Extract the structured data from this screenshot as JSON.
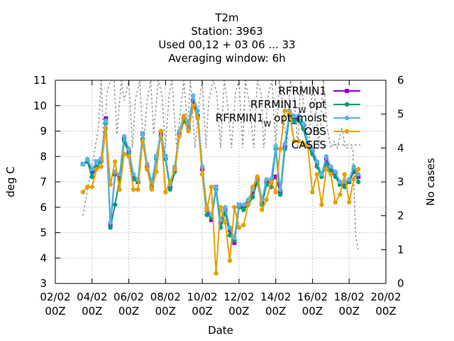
{
  "chart_data": {
    "type": "line",
    "title_lines": [
      "T2m",
      "Station:      3963",
      "Used  00,12  + 03 06 ... 33",
      "Averaging window:  6h"
    ],
    "xlabel": "Date",
    "ylabel": "deg C",
    "y2label": "No cases",
    "xlim": [
      0,
      18
    ],
    "ylim": [
      3,
      11
    ],
    "y2lim": [
      0,
      6
    ],
    "x_ticks": [
      {
        "x": 0,
        "date": "02/02",
        "hour": "00Z"
      },
      {
        "x": 2,
        "date": "04/02",
        "hour": "00Z"
      },
      {
        "x": 4,
        "date": "06/02",
        "hour": "00Z"
      },
      {
        "x": 6,
        "date": "08/02",
        "hour": "00Z"
      },
      {
        "x": 8,
        "date": "10/02",
        "hour": "00Z"
      },
      {
        "x": 10,
        "date": "12/02",
        "hour": "00Z"
      },
      {
        "x": 12,
        "date": "14/02",
        "hour": "00Z"
      },
      {
        "x": 14,
        "date": "16/02",
        "hour": "00Z"
      },
      {
        "x": 16,
        "date": "18/02",
        "hour": "00Z"
      },
      {
        "x": 18,
        "date": "20/02",
        "hour": "00Z"
      }
    ],
    "y_ticks": [
      3,
      4,
      5,
      6,
      7,
      8,
      9,
      10,
      11
    ],
    "y2_ticks": [
      0,
      1,
      2,
      3,
      4,
      5,
      6
    ],
    "grid": true,
    "legend_position": "top-right",
    "legend": [
      {
        "key": "rfrmin1",
        "main": "RFRMIN1",
        "sub": "",
        "tail": ""
      },
      {
        "key": "rfrmin1_opt",
        "main": "RFRMIN1",
        "sub": "W",
        "tail": "opt"
      },
      {
        "key": "rfrmin1_optmoist",
        "main": "RFRMIN1",
        "sub": "W",
        "tail": "opt_moist"
      },
      {
        "key": "obs",
        "main": "OBS",
        "sub": "",
        "tail": ""
      },
      {
        "key": "cases",
        "main": "CASES",
        "sub": "",
        "tail": ""
      }
    ],
    "colors": {
      "rfrmin1": "#9400d3",
      "rfrmin1_opt": "#009e73",
      "rfrmin1_optmoist": "#56b4e9",
      "obs": "#e69f00",
      "cases": "#999999"
    },
    "x": [
      1.5,
      1.75,
      2.0,
      2.25,
      2.5,
      2.75,
      3.0,
      3.25,
      3.5,
      3.75,
      4.0,
      4.25,
      4.5,
      4.75,
      5.0,
      5.25,
      5.5,
      5.75,
      6.0,
      6.25,
      6.5,
      6.75,
      7.0,
      7.25,
      7.5,
      7.75,
      8.0,
      8.25,
      8.5,
      8.75,
      9.0,
      9.25,
      9.5,
      9.75,
      10.0,
      10.25,
      10.5,
      10.75,
      11.0,
      11.25,
      11.5,
      11.75,
      12.0,
      12.25,
      12.5,
      12.75,
      13.0,
      13.25,
      13.5,
      13.75,
      14.0,
      14.25,
      14.5,
      14.75,
      15.0,
      15.25,
      15.5,
      15.75,
      16.0,
      16.25,
      16.5
    ],
    "series": [
      {
        "key": "rfrmin1",
        "values": [
          7.7,
          7.8,
          7.4,
          7.8,
          7.9,
          9.5,
          5.3,
          7.3,
          7.2,
          8.7,
          8.2,
          7.2,
          7.0,
          8.9,
          7.6,
          6.9,
          8.0,
          8.9,
          8.0,
          6.8,
          7.5,
          8.9,
          9.5,
          9.2,
          10.2,
          9.6,
          7.5,
          5.9,
          5.5,
          6.8,
          5.4,
          5.9,
          5.1,
          4.6,
          6.1,
          6.0,
          6.2,
          6.6,
          7.1,
          6.2,
          7.0,
          7.0,
          7.2,
          6.6,
          8.4,
          9.7,
          9.5,
          9.5,
          9.2,
          8.5,
          8.2,
          7.7,
          7.3,
          7.9,
          7.5,
          7.3,
          6.9,
          6.9,
          7.0,
          7.4,
          7.2
        ]
      },
      {
        "key": "rfrmin1_opt",
        "values": [
          7.7,
          7.8,
          7.2,
          7.6,
          7.8,
          9.3,
          5.2,
          6.1,
          7.1,
          8.6,
          8.1,
          7.1,
          7.0,
          8.7,
          7.5,
          6.8,
          7.9,
          8.8,
          7.9,
          6.7,
          7.4,
          8.8,
          9.4,
          9.1,
          10.0,
          9.6,
          7.3,
          5.7,
          5.6,
          6.7,
          5.2,
          5.8,
          4.9,
          4.7,
          6.0,
          5.9,
          6.1,
          6.4,
          7.0,
          6.1,
          6.9,
          6.8,
          8.3,
          6.5,
          8.3,
          9.6,
          9.4,
          9.4,
          9.1,
          8.4,
          8.1,
          7.6,
          7.2,
          7.7,
          7.4,
          7.2,
          6.9,
          6.8,
          7.0,
          7.5,
          7.0
        ]
      },
      {
        "key": "rfrmin1_optmoist",
        "values": [
          7.7,
          7.9,
          7.5,
          7.8,
          7.9,
          9.4,
          5.4,
          7.4,
          7.3,
          8.8,
          8.3,
          7.3,
          7.1,
          8.9,
          7.7,
          7.0,
          8.0,
          9.0,
          8.0,
          6.9,
          7.6,
          9.0,
          9.6,
          9.3,
          10.4,
          9.8,
          7.6,
          6.0,
          5.7,
          6.8,
          5.5,
          6.0,
          5.2,
          4.8,
          6.1,
          6.1,
          6.3,
          6.7,
          7.2,
          6.3,
          7.1,
          7.1,
          8.4,
          6.7,
          8.5,
          9.8,
          9.6,
          9.6,
          9.3,
          8.5,
          8.3,
          7.8,
          7.3,
          8.0,
          7.6,
          7.4,
          7.0,
          7.0,
          7.1,
          7.6,
          7.3
        ]
      },
      {
        "key": "obs",
        "values": [
          6.6,
          6.8,
          6.8,
          7.5,
          7.6,
          9.1,
          6.9,
          7.8,
          6.7,
          8.1,
          8.0,
          6.7,
          6.7,
          8.6,
          7.5,
          6.7,
          7.4,
          9.0,
          6.6,
          7.0,
          7.5,
          8.8,
          9.6,
          9.0,
          10.0,
          9.5,
          7.3,
          5.9,
          6.8,
          3.4,
          6.0,
          5.4,
          3.9,
          6.0,
          5.2,
          5.3,
          6.1,
          6.8,
          7.2,
          5.9,
          6.3,
          7.0,
          6.6,
          8.3,
          9.8,
          9.7,
          8.6,
          8.6,
          8.5,
          8.4,
          6.6,
          7.3,
          6.1,
          7.5,
          7.3,
          6.2,
          6.5,
          7.3,
          6.2,
          7.1,
          7.5
        ]
      },
      {
        "key": "cases",
        "axis": "y2",
        "x": [
          1.5,
          1.7,
          1.9,
          2.1,
          2.35,
          2.5,
          2.65,
          2.8,
          3.0,
          3.2,
          3.35,
          3.6,
          3.75,
          4.0,
          4.2,
          4.35,
          4.6,
          4.8,
          5.0,
          5.2,
          5.35,
          5.6,
          5.8,
          6.0,
          6.2,
          6.35,
          6.6,
          6.8,
          7.0,
          7.2,
          7.35,
          7.6,
          7.8,
          8.0,
          8.2,
          8.35,
          8.6,
          8.8,
          9.0,
          9.2,
          9.35,
          9.6,
          9.8,
          10.0,
          10.2,
          10.35,
          10.6,
          10.8,
          11.0,
          11.2,
          11.35,
          11.6,
          11.8,
          12.0,
          12.2,
          12.35,
          12.6,
          12.8,
          13.0,
          13.2,
          13.35,
          13.6,
          13.8,
          14.0,
          14.2,
          14.35,
          14.6,
          14.8,
          15.0,
          15.2,
          15.35,
          15.6,
          15.8,
          16.0,
          16.2,
          16.35,
          16.5
        ],
        "values": [
          2.0,
          2.6,
          3.2,
          3.8,
          4.6,
          6.0,
          4.0,
          5.6,
          6.0,
          6.0,
          4.4,
          6.0,
          5.4,
          6.0,
          4.0,
          5.4,
          6.0,
          4.0,
          5.4,
          6.0,
          4.4,
          6.0,
          5.6,
          4.0,
          5.6,
          6.0,
          4.0,
          5.0,
          6.0,
          4.6,
          6.0,
          4.0,
          5.2,
          6.0,
          4.0,
          5.4,
          6.0,
          5.6,
          4.0,
          6.0,
          5.4,
          4.0,
          5.6,
          6.0,
          4.0,
          6.0,
          5.2,
          4.0,
          6.0,
          5.6,
          4.0,
          5.6,
          6.0,
          4.0,
          6.0,
          5.4,
          4.0,
          6.0,
          5.6,
          4.0,
          6.0,
          5.0,
          4.0,
          6.0,
          5.2,
          4.0,
          6.0,
          4.6,
          4.0,
          4.2,
          4.0,
          4.6,
          4.0,
          4.0,
          4.0,
          1.4,
          1.0
        ]
      }
    ]
  }
}
